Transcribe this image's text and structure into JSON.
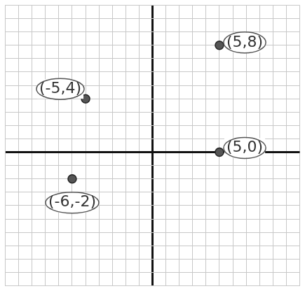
{
  "chart_data": {
    "type": "scatter",
    "x": [
      5,
      -5,
      5,
      -6
    ],
    "values": [
      8,
      4,
      0,
      -2
    ],
    "annotations": [
      "(5,8)",
      "(-5,4)",
      "(5,0)",
      "(-6,-2)"
    ],
    "color": "#555555",
    "marker": "circle",
    "xlim": [
      -11,
      11
    ],
    "ylim": [
      -10,
      11
    ],
    "xticks": [
      -11,
      -10,
      -9,
      -8,
      -7,
      -6,
      -5,
      -4,
      -3,
      -2,
      -1,
      0,
      1,
      2,
      3,
      4,
      5,
      6,
      7,
      8,
      9,
      10,
      11
    ],
    "yticks": [
      -10,
      -9,
      -8,
      -7,
      -6,
      -5,
      -4,
      -3,
      -2,
      -1,
      0,
      1,
      2,
      3,
      4,
      5,
      6,
      7,
      8,
      9,
      10,
      11
    ],
    "grid": true,
    "tick_labels": false
  }
}
